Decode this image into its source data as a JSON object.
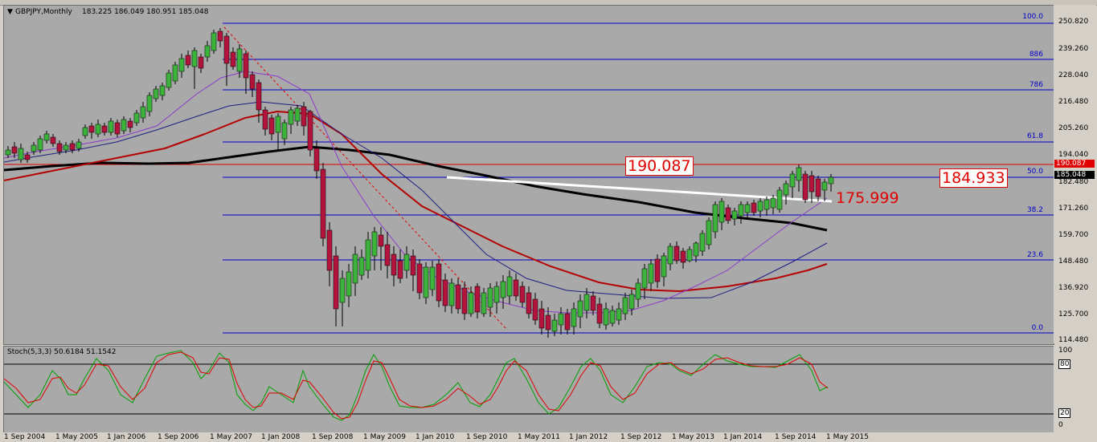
{
  "chart_header": {
    "menu_arrow": "triangle-down-icon",
    "symbol": "GBPJPY,Monthly",
    "ohlc": "183.225 186.049 180.951 185.048"
  },
  "price_axis": {
    "ticks": [
      "250.820",
      "239.260",
      "228.040",
      "216.480",
      "205.260",
      "194.040",
      "182.480",
      "171.260",
      "159.700",
      "148.480",
      "136.920",
      "125.700",
      "114.480"
    ],
    "current_price_label": "185.048",
    "resistance_label": "190.087"
  },
  "fibonacci": {
    "levels": [
      "100.0",
      "886",
      "786",
      "61.8",
      "50.0",
      "38.2",
      "23.6",
      "0.0"
    ]
  },
  "annotations": {
    "resistance": "190.087",
    "mid": "184.933",
    "support": "175.999"
  },
  "stoch": {
    "label": "Stoch(5,3,3) 50.6184 51.1542",
    "axis_ticks": [
      "100",
      "80",
      "20",
      "0"
    ]
  },
  "time_axis": {
    "labels": [
      "1 Sep 2004",
      "1 May 2005",
      "1 Jan 2006",
      "1 Sep 2006",
      "1 May 2007",
      "1 Jan 2008",
      "1 Sep 2008",
      "1 May 2009",
      "1 Jan 2010",
      "1 Sep 2010",
      "1 May 2011",
      "1 Jan 2012",
      "1 Sep 2012",
      "1 May 2013",
      "1 Jan 2014",
      "1 Sep 2014",
      "1 May 2015"
    ]
  },
  "colors": {
    "chart_bg": "#a9a9a9",
    "bull_candle": "#3cb43c",
    "bear_candle": "#b4143c",
    "fib_line": "#0000c8",
    "annotation_red": "#e00000"
  }
}
